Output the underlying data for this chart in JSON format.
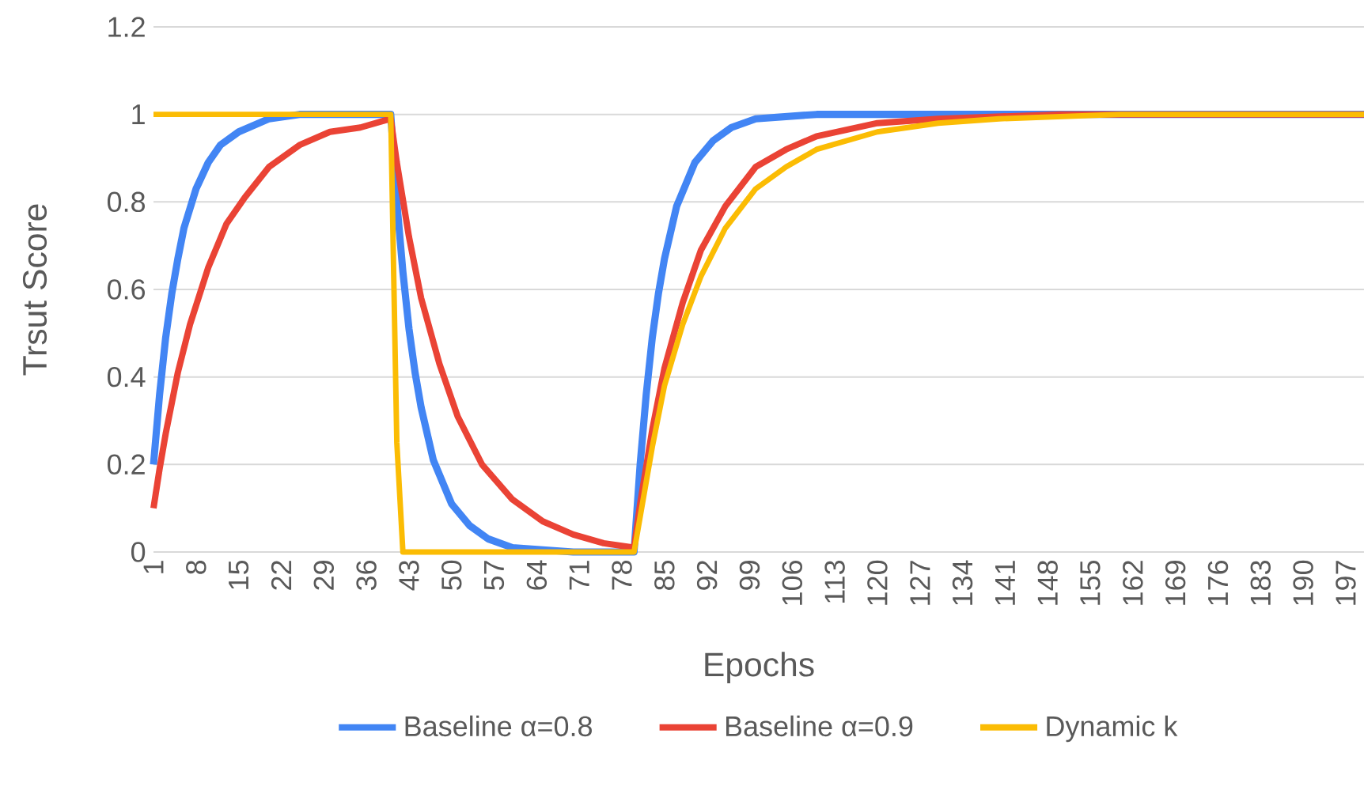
{
  "chart_data": {
    "type": "line",
    "xlabel": "Epochs",
    "ylabel": "Trsut Score",
    "xlim": [
      1,
      200
    ],
    "xticks": [
      1,
      8,
      15,
      22,
      29,
      36,
      43,
      50,
      57,
      64,
      71,
      78,
      85,
      92,
      99,
      106,
      113,
      120,
      127,
      134,
      141,
      148,
      155,
      162,
      169,
      176,
      183,
      190,
      197
    ],
    "ylim": [
      0,
      1.2
    ],
    "yticks": [
      0,
      0.2,
      0.4,
      0.6,
      0.8,
      1,
      1.2
    ],
    "grid": "y",
    "legend": "bottom",
    "marker": "none",
    "line_style": "solid",
    "series": [
      {
        "name": "Baseline α=0.8",
        "color": "#4285f4",
        "x": [
          1,
          2,
          3,
          4,
          5,
          6,
          8,
          10,
          12,
          15,
          20,
          25,
          40,
          41,
          42,
          43,
          44,
          45,
          47,
          50,
          53,
          56,
          60,
          70,
          80,
          81,
          82,
          83,
          84,
          85,
          87,
          90,
          93,
          96,
          100,
          110,
          200
        ],
        "values": [
          0.2,
          0.36,
          0.49,
          0.59,
          0.67,
          0.74,
          0.83,
          0.89,
          0.93,
          0.96,
          0.99,
          1.0,
          1.0,
          0.8,
          0.64,
          0.51,
          0.41,
          0.33,
          0.21,
          0.11,
          0.06,
          0.03,
          0.01,
          0.0,
          0.0,
          0.2,
          0.36,
          0.49,
          0.59,
          0.67,
          0.79,
          0.89,
          0.94,
          0.97,
          0.99,
          1.0,
          1.0
        ]
      },
      {
        "name": "Baseline α=0.9",
        "color": "#ea4335",
        "x": [
          1,
          2,
          3,
          5,
          7,
          10,
          13,
          16,
          20,
          25,
          30,
          35,
          40,
          41,
          43,
          45,
          48,
          51,
          55,
          60,
          65,
          70,
          75,
          80,
          81,
          83,
          85,
          88,
          91,
          95,
          100,
          105,
          110,
          120,
          130,
          150,
          200
        ],
        "values": [
          0.1,
          0.19,
          0.27,
          0.41,
          0.52,
          0.65,
          0.75,
          0.81,
          0.88,
          0.93,
          0.96,
          0.97,
          0.99,
          0.89,
          0.72,
          0.58,
          0.43,
          0.31,
          0.2,
          0.12,
          0.07,
          0.04,
          0.02,
          0.01,
          0.11,
          0.28,
          0.42,
          0.57,
          0.69,
          0.79,
          0.88,
          0.92,
          0.95,
          0.98,
          0.99,
          1.0,
          1.0
        ]
      },
      {
        "name": "Dynamic k",
        "color": "#fbbc04",
        "x": [
          1,
          40,
          41,
          42,
          80,
          81,
          83,
          85,
          88,
          91,
          95,
          100,
          105,
          110,
          120,
          130,
          140,
          160,
          200
        ],
        "values": [
          1.0,
          1.0,
          0.25,
          0.0,
          0.0,
          0.08,
          0.24,
          0.38,
          0.52,
          0.63,
          0.74,
          0.83,
          0.88,
          0.92,
          0.96,
          0.98,
          0.99,
          1.0,
          1.0
        ]
      }
    ]
  }
}
